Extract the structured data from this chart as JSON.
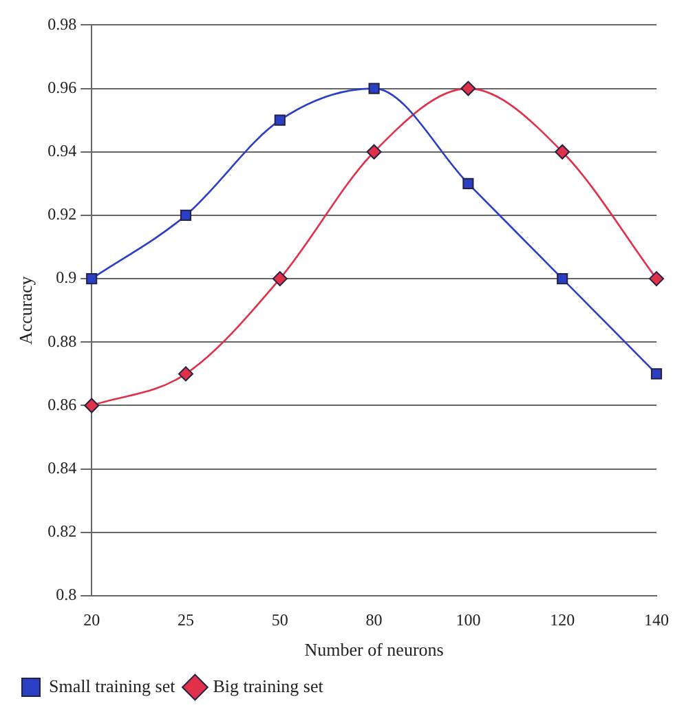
{
  "chart_data": {
    "type": "line",
    "xlabel": "Number of neurons",
    "ylabel": "Accuracy",
    "categories": [
      "20",
      "25",
      "50",
      "80",
      "100",
      "120",
      "140"
    ],
    "series": [
      {
        "name": "Small training set",
        "color": "#2b3fc4",
        "marker": "square",
        "values": [
          0.9,
          0.92,
          0.95,
          0.96,
          0.93,
          0.9,
          0.87
        ]
      },
      {
        "name": "Big training set",
        "color": "#e0304a",
        "marker": "diamond",
        "values": [
          0.86,
          0.87,
          0.9,
          0.94,
          0.96,
          0.94,
          0.9
        ]
      }
    ],
    "ylim": [
      0.8,
      0.98
    ],
    "yticks": [
      0.8,
      0.82,
      0.84,
      0.86,
      0.88,
      0.9,
      0.92,
      0.94,
      0.96,
      0.98
    ],
    "grid": "y",
    "legend": "bottom",
    "line_style": "solid"
  }
}
